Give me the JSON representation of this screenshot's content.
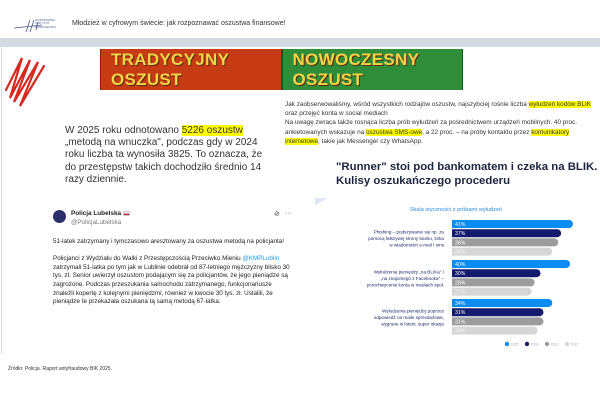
{
  "header": {
    "logo_text": "WARSZAWSKI INSTYTUT BANKOWOŚCI",
    "title": "Młodzież w cyfrowym świecie: jak rozpoznawać oszustwa finansowe!"
  },
  "banner": {
    "left": "TRADYCYJNY OSZUST",
    "right": "NOWOCZESNY OSZUST"
  },
  "right_text": {
    "p1": "Jak zaobserwowaliśmy, wśród wszystkich rodzajów oszustw, najszybciej rośnie liczba ",
    "h1": "wyłudzeń kodów BLIK",
    "p2": " oraz przejęć konta w social mediach",
    "p3": "Na uwagę zwraca także rosnąca liczba prób wyłudzeń za pośrednictwem urządzeń mobilnych. 40 proc. ankietowanych wskazuje na ",
    "h2": "oszustwa SMS-owe",
    "p4": ", a 22 proc. – na próby kontaktu przez ",
    "h3": "komunikatory internetowe",
    "p5": ", takie jak Messenger czy WhatsApp."
  },
  "left_text": {
    "p1": "W 2025 roku odnotowano ",
    "h1": "5226 oszustw",
    "p2": " „metodą na wnuczka\", podczas gdy w 2024 roku liczba ta wynosiła 3825. To oznacza, że do przestępstw takich dochodziło średnio 14 razy dziennie."
  },
  "tweet": {
    "name": "Policja Lubelska",
    "handle": "@PolicjaLubelska",
    "line1": "51-latek zatrzymany i tymczasowo aresztowany za oszustwa metodą na policjanta!",
    "b1": "Policjanci z Wydziału do Walki z Przestępczością Przeciwko Mieniu ",
    "mention": "@KMPLublin",
    "b2": " zatrzymali 51-latka po tym jak w Lublinie odebrał od 87-letniego mężczyzny blisko 30 tys. zł. Senior uwierzył oszustom podającym się za policjantów, że jego pieniądze są zagrożone. Podczas przeszukania samochodu  zatrzymanego, funkcjonariusze znaleźli kopertę z kolejnymi pieniędzmi, również w kwocie 30 tys. zł. Ustalili, że pieniądze te przekazała oszukana tą samą metodą 67-latka.",
    "more": "···"
  },
  "article_title": "\"Runner\" stoi pod bankomatem i czeka na BLIK. Kulisy oszukańczego procederu",
  "chart_data": {
    "type": "bar",
    "orientation": "horizontal",
    "title": "Skala styczności z próbami wyłudzeń",
    "categories": [
      "Phishing – podszywanie się np. za pomocą fałszywej strony banku, linka w wiadomości e-mail / sms",
      "Wyłudzenia pieniędzy „na BLIKa\" / „na znajomego z Facebooka\" – przechwycenie konta w mediach społ.",
      "Wyłudzenia pieniędzy poprzez odpowiedź na maile sprzedażowe, wygrane w loterii, super okazje"
    ],
    "series": [
      {
        "name": "2025",
        "values": [
          41,
          40,
          34
        ],
        "color": "#0a8cf0"
      },
      {
        "name": "2024",
        "values": [
          37,
          30,
          31
        ],
        "color": "#141a6e"
      },
      {
        "name": "2023",
        "values": [
          36,
          28,
          31
        ],
        "color": "#9c9c9c"
      },
      {
        "name": "2022",
        "values": [
          34,
          27,
          29
        ],
        "color": "#d6d6d6"
      }
    ],
    "value_suffix": "%",
    "legend": "bottom-right"
  },
  "source": "Źródło: Policja. Raport antyfraudowy BIK 2025."
}
